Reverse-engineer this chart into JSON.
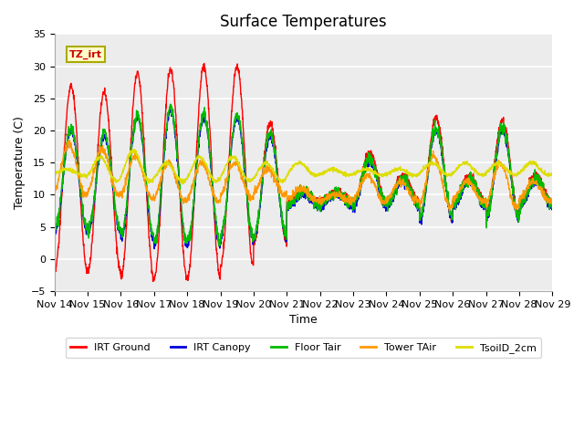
{
  "title": "Surface Temperatures",
  "xlabel": "Time",
  "ylabel": "Temperature (C)",
  "ylim": [
    -5,
    35
  ],
  "xtick_labels": [
    "Nov 14",
    "Nov 15",
    "Nov 16",
    "Nov 17",
    "Nov 18",
    "Nov 19",
    "Nov 20",
    "Nov 21",
    "Nov 22",
    "Nov 23",
    "Nov 24",
    "Nov 25",
    "Nov 26",
    "Nov 27",
    "Nov 28",
    "Nov 29"
  ],
  "yticks": [
    -5,
    0,
    5,
    10,
    15,
    20,
    25,
    30,
    35
  ],
  "legend_entries": [
    "IRT Ground",
    "IRT Canopy",
    "Floor Tair",
    "Tower TAir",
    "TsoilD_2cm"
  ],
  "line_colors": [
    "#ff0000",
    "#0000dd",
    "#00bb00",
    "#ff9900",
    "#dddd00"
  ],
  "annotation_text": "TZ_irt",
  "plot_bg_color": "#ececec",
  "title_fontsize": 12
}
